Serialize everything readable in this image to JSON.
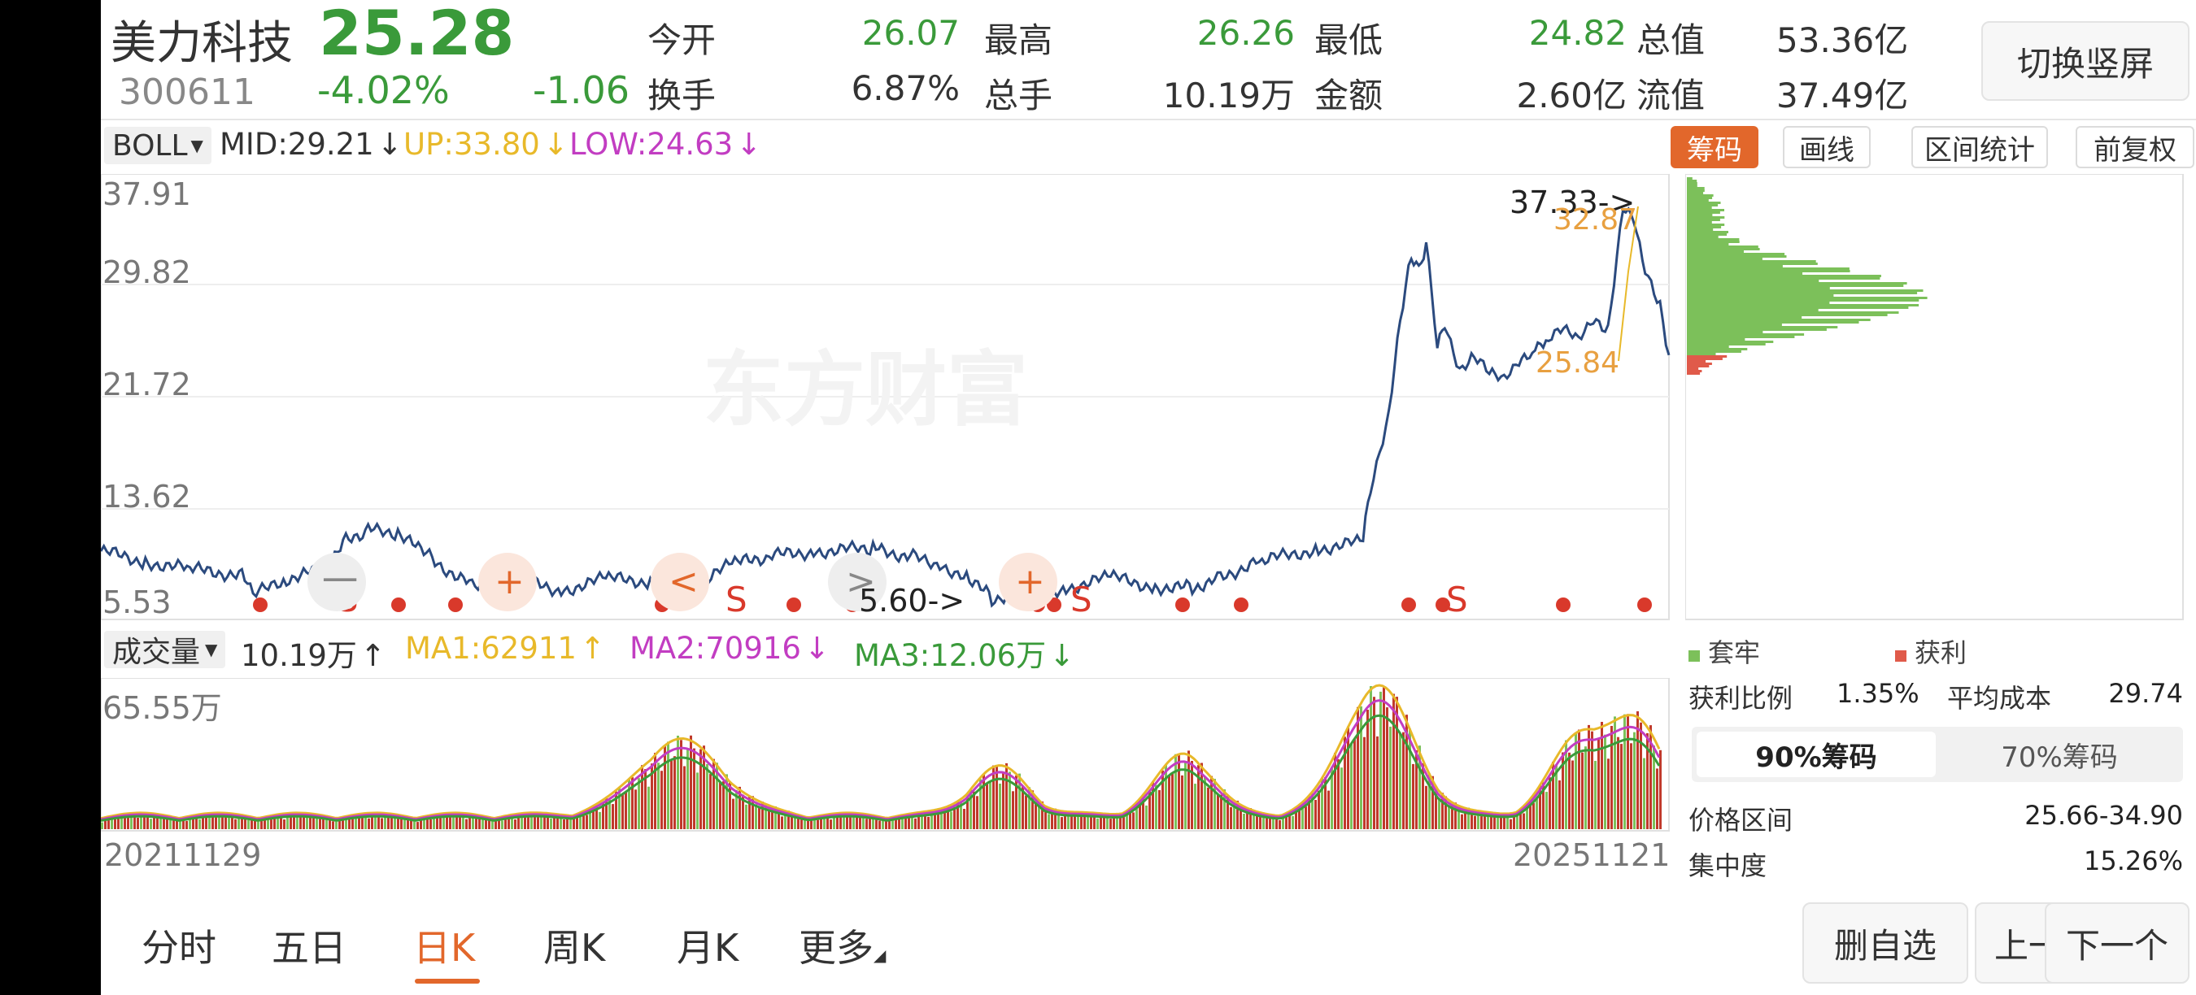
{
  "header": {
    "name": "美力科技",
    "price": "25.28",
    "code": "300611",
    "change_pct": "-4.02%",
    "change_amt": "-1.06",
    "stats": [
      {
        "label": "今开",
        "value": "26.07",
        "color": "green"
      },
      {
        "label": "最高",
        "value": "26.26",
        "color": "green"
      },
      {
        "label": "最低",
        "value": "24.82",
        "color": "green"
      },
      {
        "label": "总值",
        "value": "53.36亿",
        "color": "dark"
      },
      {
        "label": "换手",
        "value": "6.87%",
        "color": "dark"
      },
      {
        "label": "总手",
        "value": "10.19万",
        "color": "dark"
      },
      {
        "label": "金额",
        "value": "2.60亿",
        "color": "dark"
      },
      {
        "label": "流值",
        "value": "37.49亿",
        "color": "dark"
      }
    ],
    "switch_button": "切换竖屏"
  },
  "indicator_bar": {
    "selector": "BOLL",
    "mid": "MID:29.21",
    "up": "UP:33.80",
    "low": "LOW:24.63",
    "tabs": [
      "筹码",
      "画线",
      "区间统计",
      "前复权"
    ]
  },
  "price_chart": {
    "y_ticks": [
      "37.91",
      "29.82",
      "21.72",
      "13.62",
      "5.53"
    ],
    "watermark": "东方财富",
    "high_label": "37.33->",
    "low_label": "5.60->",
    "chip_upper": "32.87",
    "chip_lower": "25.84",
    "s_label": "S",
    "nav_icons": [
      "一",
      "+",
      "<",
      ">",
      "+"
    ]
  },
  "volume_bar": {
    "selector": "成交量",
    "vol": "10.19万",
    "ma1": "MA1:62911",
    "ma2": "MA2:70916",
    "ma3": "MA3:12.06万",
    "max_label": "65.55万",
    "start_date": "20211129",
    "end_date": "20251121"
  },
  "chip_panel": {
    "legend_trapped": "套牢",
    "legend_profit": "获利",
    "profit_ratio_label": "获利比例",
    "profit_ratio": "1.35%",
    "avg_cost_label": "平均成本",
    "avg_cost": "29.74",
    "tab_90": "90%筹码",
    "tab_70": "70%筹码",
    "range_label": "价格区间",
    "range": "25.66-34.90",
    "concentration_label": "集中度",
    "concentration": "15.26%"
  },
  "bottom_tabs": [
    "分时",
    "五日",
    "日K",
    "周K",
    "月K",
    "更多"
  ],
  "bottom_buttons": [
    "删自选",
    "上一个",
    "下一个"
  ],
  "colors": {
    "green": "#3a9a3a",
    "red": "#d9392b",
    "orange": "#e2672b",
    "line": "#2b4a7e",
    "ma_yellow": "#e8b92a",
    "ma_purple": "#c23dc2",
    "chip_green": "#7cc05a",
    "chip_red": "#e05a4a"
  }
}
